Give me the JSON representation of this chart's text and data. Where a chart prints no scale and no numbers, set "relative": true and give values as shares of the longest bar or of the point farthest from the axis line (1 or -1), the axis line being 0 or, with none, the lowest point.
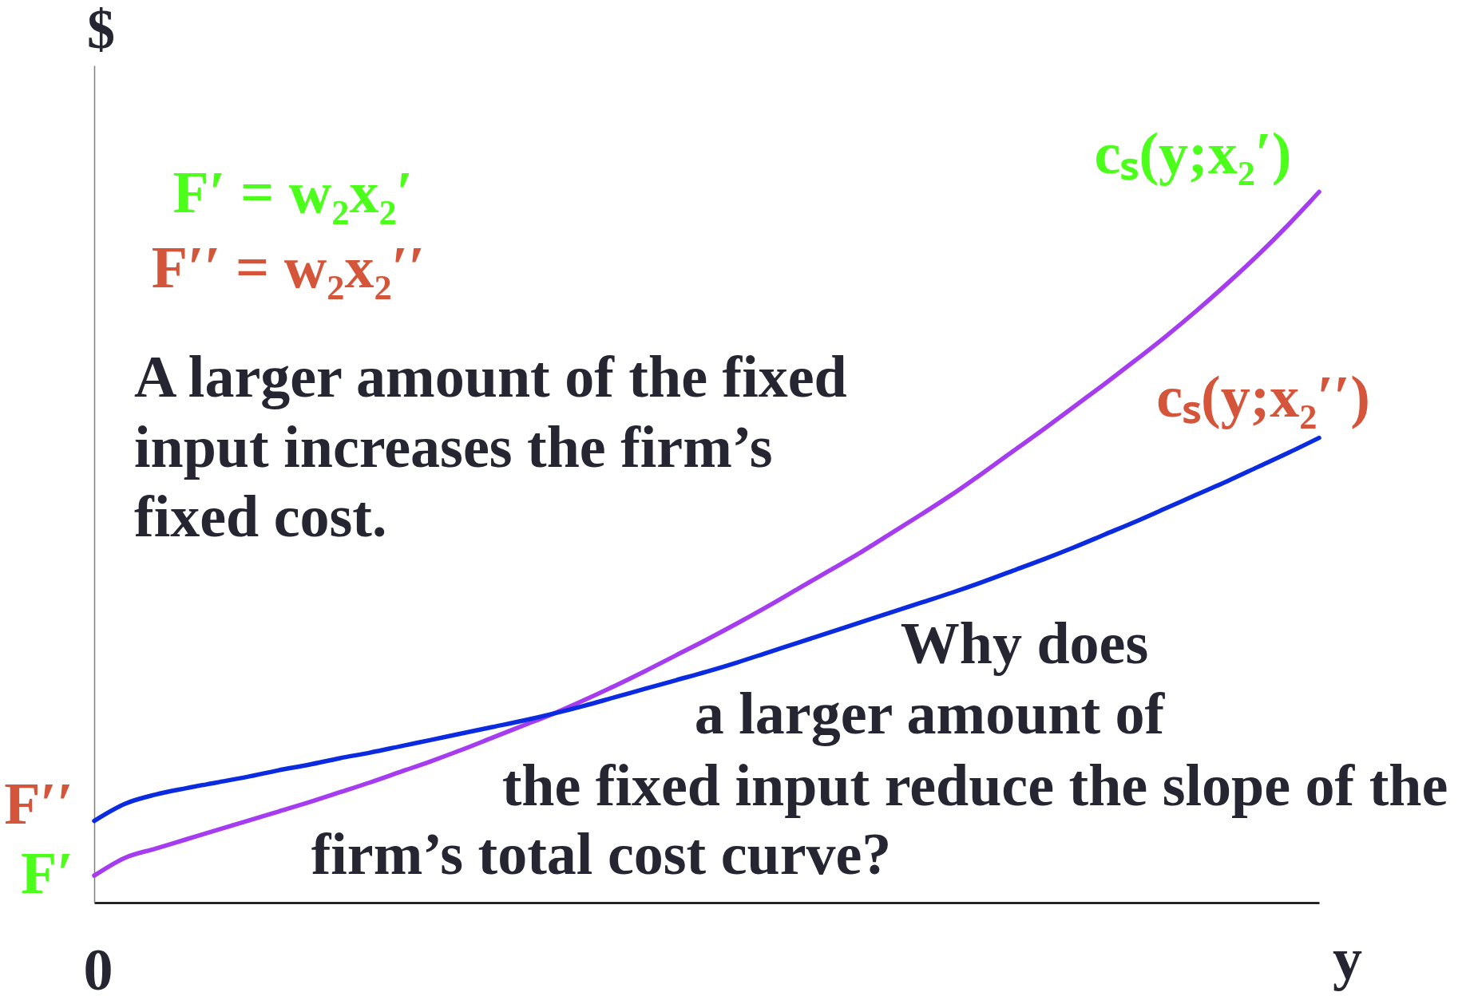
{
  "chart_data": {
    "type": "line",
    "relative": true,
    "xlabel": "y",
    "ylabel": "$",
    "categories": [
      null,
      null,
      null,
      null,
      null,
      null,
      null,
      null,
      null,
      null,
      null,
      null,
      null,
      null,
      null,
      null,
      null,
      null,
      null,
      null,
      null,
      null,
      null,
      null,
      null,
      null,
      null,
      null,
      null,
      null,
      null,
      null,
      null,
      null,
      null,
      null,
      null,
      null,
      null,
      null,
      null
    ],
    "series": [
      {
        "name": "cₛ(y;x₂′)",
        "color": "#a63cf0",
        "values": [
          0.038,
          0.063,
          0.076,
          0.089,
          0.102,
          0.115,
          0.128,
          0.141,
          0.155,
          0.169,
          0.184,
          0.199,
          0.215,
          0.232,
          0.249,
          0.266,
          0.285,
          0.305,
          0.326,
          0.348,
          0.37,
          0.393,
          0.417,
          0.442,
          0.467,
          0.492,
          0.519,
          0.546,
          0.574,
          0.604,
          0.635,
          0.666,
          0.698,
          0.73,
          0.763,
          0.797,
          0.833,
          0.871,
          0.911,
          0.954,
          1.0
        ]
      },
      {
        "name": "cₛ(y;x₂′′)",
        "color": "#0a2be0",
        "values": [
          0.115,
          0.139,
          0.152,
          0.161,
          0.169,
          0.177,
          0.186,
          0.194,
          0.203,
          0.211,
          0.22,
          0.229,
          0.238,
          0.247,
          0.256,
          0.266,
          0.277,
          0.289,
          0.301,
          0.313,
          0.325,
          0.338,
          0.352,
          0.366,
          0.38,
          0.394,
          0.408,
          0.422,
          0.436,
          0.451,
          0.467,
          0.483,
          0.5,
          0.518,
          0.536,
          0.555,
          0.574,
          0.593,
          0.613,
          0.633,
          0.654
        ]
      }
    ],
    "annotations": [
      "F′ = w₂x₂′",
      "F′′ = w₂x₂′′",
      "A larger amount of the fixed\ninput increases the firm’s\nfixed cost.",
      "Why does\na larger amount of\nthe fixed input reduce the slope of the\nfirm’s total cost curve?",
      "F′′",
      "F′",
      "0"
    ]
  }
}
